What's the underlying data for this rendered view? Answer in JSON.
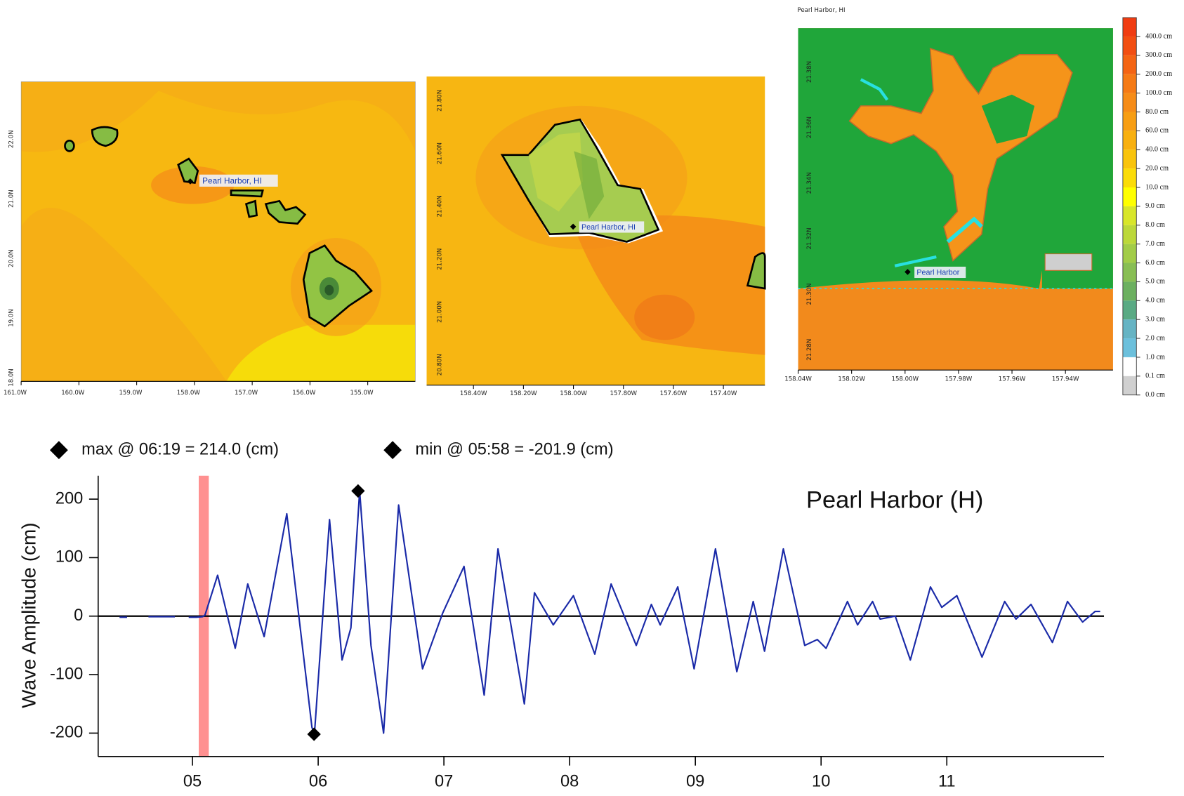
{
  "maps": [
    {
      "xticks": [
        "161.0W",
        "160.0W",
        "159.0W",
        "158.0W",
        "157.0W",
        "156.0W",
        "155.0W"
      ],
      "yticks": [
        "18.0N",
        "19.0N",
        "20.0N",
        "21.0N",
        "22.0N"
      ],
      "place": "Pearl Harbor, HI"
    },
    {
      "xticks": [
        "158.40W",
        "158.20W",
        "158.00W",
        "157.80W",
        "157.60W",
        "157.40W"
      ],
      "yticks": [
        "20.80N",
        "21.00N",
        "21.20N",
        "21.40N",
        "21.60N",
        "21.80N"
      ],
      "place": "Pearl Harbor, HI"
    },
    {
      "title": "Pearl Harbor, HI",
      "xticks": [
        "158.04W",
        "158.02W",
        "158.00W",
        "157.98W",
        "157.96W",
        "157.94W"
      ],
      "yticks": [
        "21.28N",
        "21.30N",
        "21.32N",
        "21.34N",
        "21.36N",
        "21.38N"
      ],
      "place": "Pearl Harbor"
    }
  ],
  "colorbar": {
    "labels": [
      "400.0 cm",
      "300.0 cm",
      "200.0 cm",
      "100.0 cm",
      "80.0 cm",
      "60.0 cm",
      "40.0 cm",
      "20.0 cm",
      "10.0 cm",
      "9.0 cm",
      "8.0 cm",
      "7.0 cm",
      "6.0 cm",
      "5.0 cm",
      "4.0 cm",
      "3.0 cm",
      "2.0 cm",
      "1.0 cm",
      "0.1 cm",
      "0.0 cm"
    ],
    "colors": [
      "#f03c12",
      "#f24e12",
      "#f46414",
      "#f57a16",
      "#f68c18",
      "#f79e14",
      "#f8b010",
      "#f9c40c",
      "#fbdc08",
      "#ffff00",
      "#d8e62a",
      "#bcd83a",
      "#a2cc48",
      "#88be54",
      "#6cb060",
      "#5aaa84",
      "#66b4c4",
      "#6cc0dc",
      "#ffffff",
      "#d0d0d0"
    ]
  },
  "chart_data": {
    "type": "line",
    "title": "Pearl Harbor (H)",
    "y_label": "Wave Amplitude (cm)",
    "annotations": [
      "max @ 06:19 = 214.0 (cm)",
      "min @ 05:58 = -201.9 (cm)"
    ],
    "xlim": [
      4.25,
      12.25
    ],
    "ylim": [
      -240,
      240
    ],
    "xticks": [
      {
        "value": 5,
        "label": "05"
      },
      {
        "value": 6,
        "label": "06"
      },
      {
        "value": 7,
        "label": "07"
      },
      {
        "value": 8,
        "label": "08"
      },
      {
        "value": 9,
        "label": "09"
      },
      {
        "value": 10,
        "label": "10"
      },
      {
        "value": 11,
        "label": "11"
      }
    ],
    "yticks": [
      -200,
      -100,
      0,
      100,
      200
    ],
    "shade_x": [
      5.05,
      5.13
    ],
    "shade_color": "#ff9090",
    "series": [
      {
        "color": "#1a2aa8",
        "x": [
          4.42,
          4.48,
          4.55,
          4.65,
          4.86,
          4.95,
          4.97,
          5.03,
          5.08,
          5.1,
          5.2,
          5.34,
          5.44,
          5.57,
          5.75,
          5.95,
          5.97,
          6.09,
          6.19,
          6.26,
          6.33,
          6.42,
          6.52,
          6.64,
          6.83,
          6.99,
          7.16,
          7.32,
          7.43,
          7.64,
          7.72,
          7.87,
          8.03,
          8.2,
          8.33,
          8.53,
          8.65,
          8.72,
          8.86,
          8.99,
          9.16,
          9.33,
          9.46,
          9.55,
          9.7,
          9.87,
          9.97,
          10.04,
          10.21,
          10.29,
          10.41,
          10.47,
          10.59,
          10.71,
          10.87,
          10.96,
          11.08,
          11.28,
          11.46,
          11.55,
          11.67,
          11.84,
          11.96,
          12.08,
          12.18,
          12.22
        ],
        "values": [
          -2,
          -2,
          null,
          -1,
          -1,
          null,
          -2,
          -2,
          -1,
          2,
          70,
          -55,
          55,
          -35,
          175,
          -190,
          -201.9,
          165,
          -75,
          -20,
          214,
          -50,
          -200,
          190,
          -90,
          5,
          85,
          -135,
          115,
          -150,
          40,
          -15,
          35,
          -65,
          55,
          -50,
          20,
          -15,
          50,
          -90,
          115,
          -95,
          25,
          -60,
          115,
          -50,
          -40,
          -55,
          25,
          -15,
          25,
          -5,
          0,
          -75,
          50,
          15,
          35,
          -70,
          25,
          -5,
          20,
          -45,
          25,
          -10,
          8,
          8
        ]
      }
    ],
    "markers": {
      "color": "#000000",
      "x": [
        6.317,
        5.967
      ],
      "values": [
        214.0,
        -201.9
      ]
    }
  }
}
